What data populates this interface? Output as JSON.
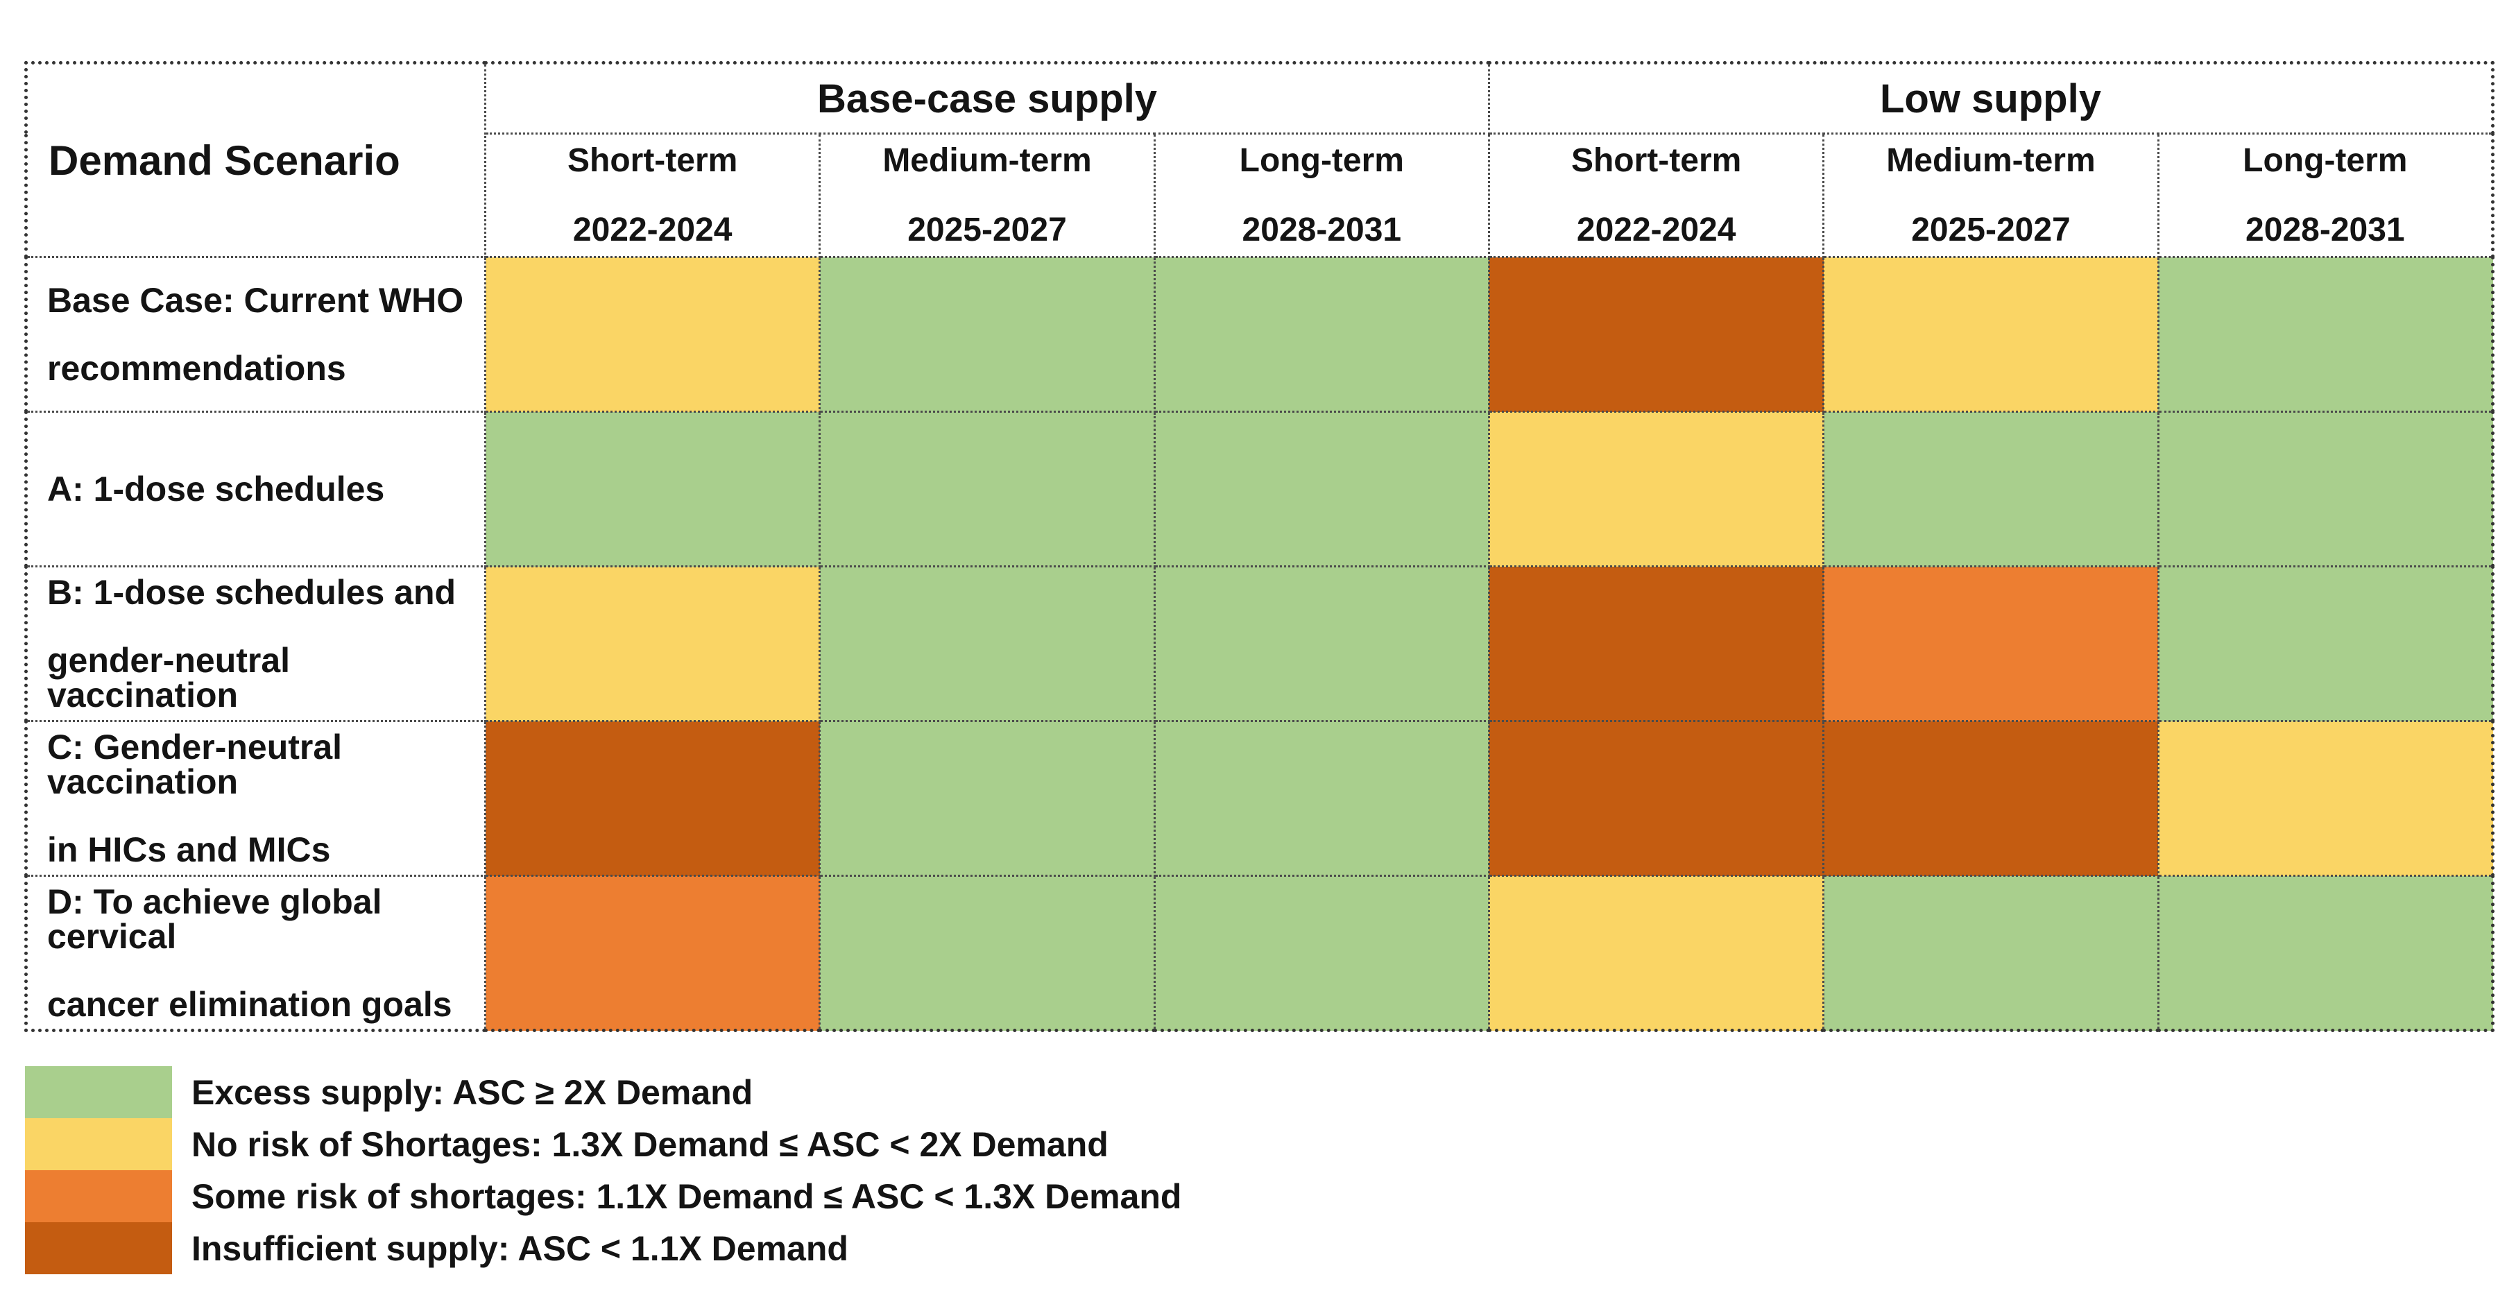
{
  "palette": {
    "excess": "#A9CF8D",
    "no_risk": "#FAD565",
    "some_risk": "#ED7E31",
    "insufficient": "#C45C11"
  },
  "header": {
    "demand_scenario": "Demand Scenario",
    "groups": [
      {
        "label": "Base-case supply"
      },
      {
        "label": "Low supply"
      }
    ],
    "subs": [
      {
        "term": "Short-term",
        "years": "2022-2024"
      },
      {
        "term": "Medium-term",
        "years": "2025-2027"
      },
      {
        "term": "Long-term",
        "years": "2028-2031"
      },
      {
        "term": "Short-term",
        "years": "2022-2024"
      },
      {
        "term": "Medium-term",
        "years": "2025-2027"
      },
      {
        "term": "Long-term",
        "years": "2028-2031"
      }
    ]
  },
  "rows": [
    {
      "label": "Base Case: Current WHO",
      "label2": "recommendations",
      "cells": [
        "no_risk",
        "excess",
        "excess",
        "insufficient",
        "no_risk",
        "excess"
      ]
    },
    {
      "label": "A: 1-dose schedules",
      "label2": "",
      "cells": [
        "excess",
        "excess",
        "excess",
        "no_risk",
        "excess",
        "excess"
      ]
    },
    {
      "label": "B: 1-dose schedules and",
      "label2": "gender-neutral vaccination",
      "cells": [
        "no_risk",
        "excess",
        "excess",
        "insufficient",
        "some_risk",
        "excess"
      ]
    },
    {
      "label": "C: Gender-neutral vaccination",
      "label2": "in HICs and MICs",
      "cells": [
        "insufficient",
        "excess",
        "excess",
        "insufficient",
        "insufficient",
        "no_risk"
      ]
    },
    {
      "label": "D: To achieve global cervical",
      "label2": "cancer elimination goals",
      "cells": [
        "some_risk",
        "excess",
        "excess",
        "no_risk",
        "excess",
        "excess"
      ]
    }
  ],
  "legend": [
    {
      "key": "excess",
      "label": "Excess supply: ASC ≥ 2X Demand"
    },
    {
      "key": "no_risk",
      "label": "No risk of Shortages: 1.3X Demand ≤ ASC < 2X Demand"
    },
    {
      "key": "some_risk",
      "label": "Some risk of shortages: 1.1X Demand ≤ ASC < 1.3X Demand"
    },
    {
      "key": "insufficient",
      "label": "Insufficient supply: ASC < 1.1X Demand"
    }
  ],
  "chart_data": {
    "type": "heatmap",
    "title": "HPV vaccine supply-demand risk matrix",
    "column_groups": [
      "Base-case supply",
      "Low supply"
    ],
    "x_categories": [
      "Base-case supply / Short-term 2022-2024",
      "Base-case supply / Medium-term 2025-2027",
      "Base-case supply / Long-term 2028-2031",
      "Low supply / Short-term 2022-2024",
      "Low supply / Medium-term 2025-2027",
      "Low supply / Long-term 2028-2031"
    ],
    "y_categories": [
      "Base Case: Current WHO recommendations",
      "A: 1-dose schedules",
      "B: 1-dose schedules and gender-neutral vaccination",
      "C: Gender-neutral vaccination in HICs and MICs",
      "D: To achieve global cervical cancer elimination goals"
    ],
    "values": [
      [
        "no_risk",
        "excess",
        "excess",
        "insufficient",
        "no_risk",
        "excess"
      ],
      [
        "excess",
        "excess",
        "excess",
        "no_risk",
        "excess",
        "excess"
      ],
      [
        "no_risk",
        "excess",
        "excess",
        "insufficient",
        "some_risk",
        "excess"
      ],
      [
        "insufficient",
        "excess",
        "excess",
        "insufficient",
        "insufficient",
        "no_risk"
      ],
      [
        "some_risk",
        "excess",
        "excess",
        "no_risk",
        "excess",
        "excess"
      ]
    ],
    "value_labels": {
      "excess": "Excess supply: ASC ≥ 2X Demand",
      "no_risk": "No risk of Shortages: 1.3X Demand ≤ ASC < 2X Demand",
      "some_risk": "Some risk of shortages: 1.1X Demand ≤ ASC < 1.3X Demand",
      "insufficient": "Insufficient supply: ASC < 1.1X Demand"
    },
    "legend_position": "bottom-left",
    "grid": "dotted"
  }
}
